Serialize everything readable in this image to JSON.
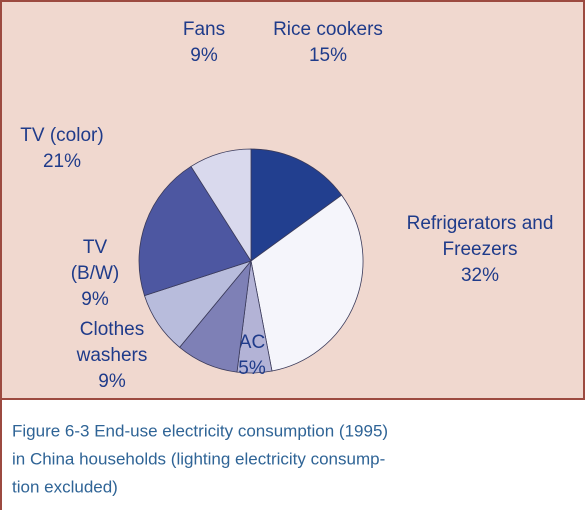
{
  "chart_data": {
    "type": "pie",
    "categories": [
      [
        "Rice cookers"
      ],
      [
        "Refrigerators and",
        "Freezers"
      ],
      [
        "AC"
      ],
      [
        "Clothes",
        "washers"
      ],
      [
        "TV",
        "(B/W)"
      ],
      [
        "TV (color)"
      ],
      [
        "Fans"
      ]
    ],
    "values": [
      15,
      32,
      5,
      9,
      9,
      21,
      9
    ],
    "value_labels": [
      "15%",
      "32%",
      "5%",
      "9%",
      "9%",
      "21%",
      "9%"
    ],
    "colors": [
      "#223f8f",
      "#f5f5fb",
      "#b3b3d6",
      "#7e80b6",
      "#b8bcdc",
      "#4d57a1",
      "#d9d9ed"
    ]
  },
  "caption": [
    "Figure 6-3  End-use electricity consumption (1995)",
    "in China households (lighting electricity consump-",
    "tion excluded)"
  ]
}
